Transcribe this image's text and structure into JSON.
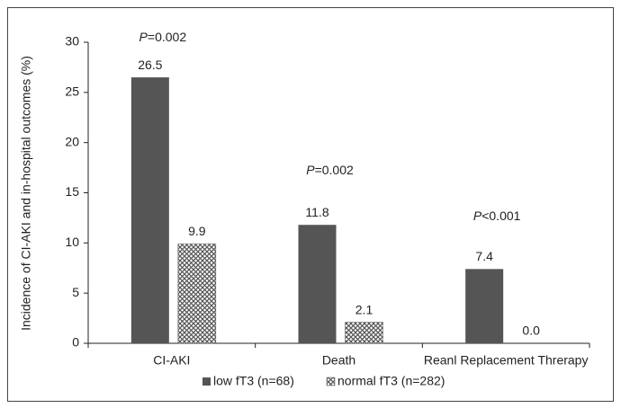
{
  "chart_data": {
    "type": "bar",
    "y_label": "Incidence of CI-AKI and in-hospital outcomes (%)",
    "categories": [
      "CI-AKI",
      "Death",
      "Reanl Replacement Threrapy"
    ],
    "series": [
      {
        "name": "low fT3 (n=68)",
        "color": "#555555",
        "pattern": "solid",
        "values": [
          26.5,
          11.8,
          7.4
        ],
        "value_labels": [
          "26.5",
          "11.8",
          "7.4"
        ]
      },
      {
        "name": "normal fT3 (n=282)",
        "color": "#555555",
        "pattern": "crosshatch",
        "values": [
          9.9,
          2.1,
          0
        ],
        "value_labels": [
          "9.9",
          "2.1",
          "0.0"
        ]
      }
    ],
    "annotations": [
      "P=0.002",
      "P=0.002",
      "P<0.001"
    ],
    "ylim": [
      0,
      30
    ],
    "yticks": [
      0,
      5,
      10,
      15,
      20,
      25,
      30
    ],
    "grid": false
  }
}
